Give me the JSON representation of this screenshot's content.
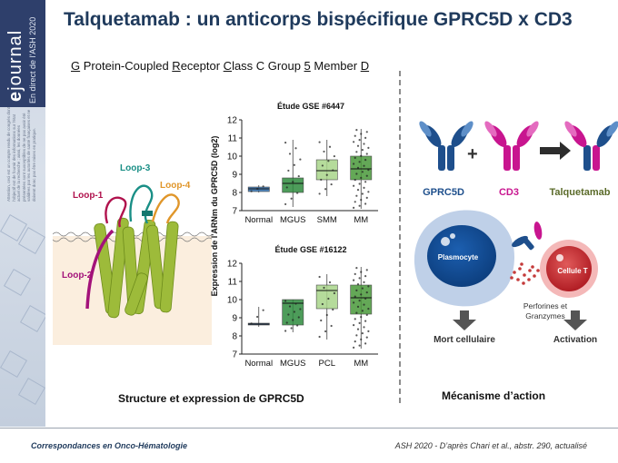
{
  "sidebar": {
    "brand": "journal",
    "brand_sub": "En direct de l'ASH 2020",
    "disclaimer": "Attention, ceci est un compte rendu de congrès dont l'objectif est de fournir des informations sur l'état actuel de la recherche ; ainsi, les données présentées sont susceptibles de ne pas avoir été validées par les autorités de santé françaises et ne doivent donc pas être mises en pratique."
  },
  "title": "Talquetamab : un anticorps bispécifique GPRC5D x CD3",
  "subtitle": {
    "parts": [
      "G",
      " Protein-Coupled ",
      "R",
      "eceptor ",
      "C",
      "lass C Group ",
      "5",
      " Member ",
      "D"
    ]
  },
  "structure": {
    "loops": [
      "Loop-1",
      "Loop-3",
      "Loop-4",
      "Loop-2"
    ]
  },
  "charts": {
    "ylabel": "Expression de l'ARNm du GPRC5D (log2)",
    "top": {
      "title": "Étude GSE #6447",
      "categories": [
        "Normal",
        "MGUS",
        "SMM",
        "MM"
      ],
      "yticks": [
        "7",
        "8",
        "9",
        "10",
        "11",
        "12"
      ]
    },
    "bottom": {
      "title": "Étude GSE #16122",
      "categories": [
        "Normal",
        "MGUS",
        "PCL",
        "MM"
      ],
      "yticks": [
        "7",
        "8",
        "9",
        "10",
        "11",
        "12"
      ]
    }
  },
  "chart_data": [
    {
      "type": "box",
      "title": "Étude GSE #6447",
      "ylabel": "Expression de l'ARNm du GPRC5D (log2)",
      "categories": [
        "Normal",
        "MGUS",
        "SMM",
        "MM"
      ],
      "ylim": [
        7,
        12
      ],
      "boxes": [
        {
          "category": "Normal",
          "min": 8.0,
          "q1": 8.05,
          "median": 8.2,
          "q3": 8.3,
          "max": 8.4
        },
        {
          "category": "MGUS",
          "min": 7.2,
          "q1": 8.0,
          "median": 8.5,
          "q3": 8.8,
          "max": 10.9
        },
        {
          "category": "SMM",
          "min": 7.8,
          "q1": 8.7,
          "median": 9.2,
          "q3": 9.8,
          "max": 10.9
        },
        {
          "category": "MM",
          "min": 7.1,
          "q1": 8.7,
          "median": 9.3,
          "q3": 10.0,
          "max": 11.5
        }
      ]
    },
    {
      "type": "box",
      "title": "Étude GSE #16122",
      "ylabel": "Expression de l'ARNm du GPRC5D (log2)",
      "categories": [
        "Normal",
        "MGUS",
        "PCL",
        "MM"
      ],
      "ylim": [
        7,
        12
      ],
      "boxes": [
        {
          "category": "Normal",
          "min": 8.5,
          "q1": 8.6,
          "median": 8.65,
          "q3": 8.7,
          "max": 9.6
        },
        {
          "category": "MGUS",
          "min": 8.2,
          "q1": 8.6,
          "median": 9.8,
          "q3": 10.0,
          "max": 10.0
        },
        {
          "category": "PCL",
          "min": 7.8,
          "q1": 9.5,
          "median": 10.5,
          "q3": 10.8,
          "max": 11.4
        },
        {
          "category": "MM",
          "min": 7.3,
          "q1": 9.2,
          "median": 10.1,
          "q3": 10.8,
          "max": 11.8
        }
      ]
    }
  ],
  "mechanism": {
    "labels": {
      "gprc5d": "GPRC5D",
      "cd3": "CD3",
      "talquetamab": "Talquetamab",
      "plasmocyte": "Plasmocyte",
      "cellule_t": "Cellule T",
      "perforines": "Perforines et",
      "granzymes": "Granzymes",
      "mort": "Mort cellulaire",
      "activation": "Activation",
      "plus": "+"
    },
    "colors": {
      "gprc5d": "#1e4f8c",
      "cd3": "#c8158f",
      "talquetamab": "#5b6b2a"
    }
  },
  "captions": {
    "left": "Structure et expression de GPRC5D",
    "right": "Mécanisme d’action"
  },
  "footer": {
    "left": "Correspondances en Onco-Hématologie",
    "right": "ASH 2020 - D’après Chari et al., abstr. 290, actualisé"
  }
}
